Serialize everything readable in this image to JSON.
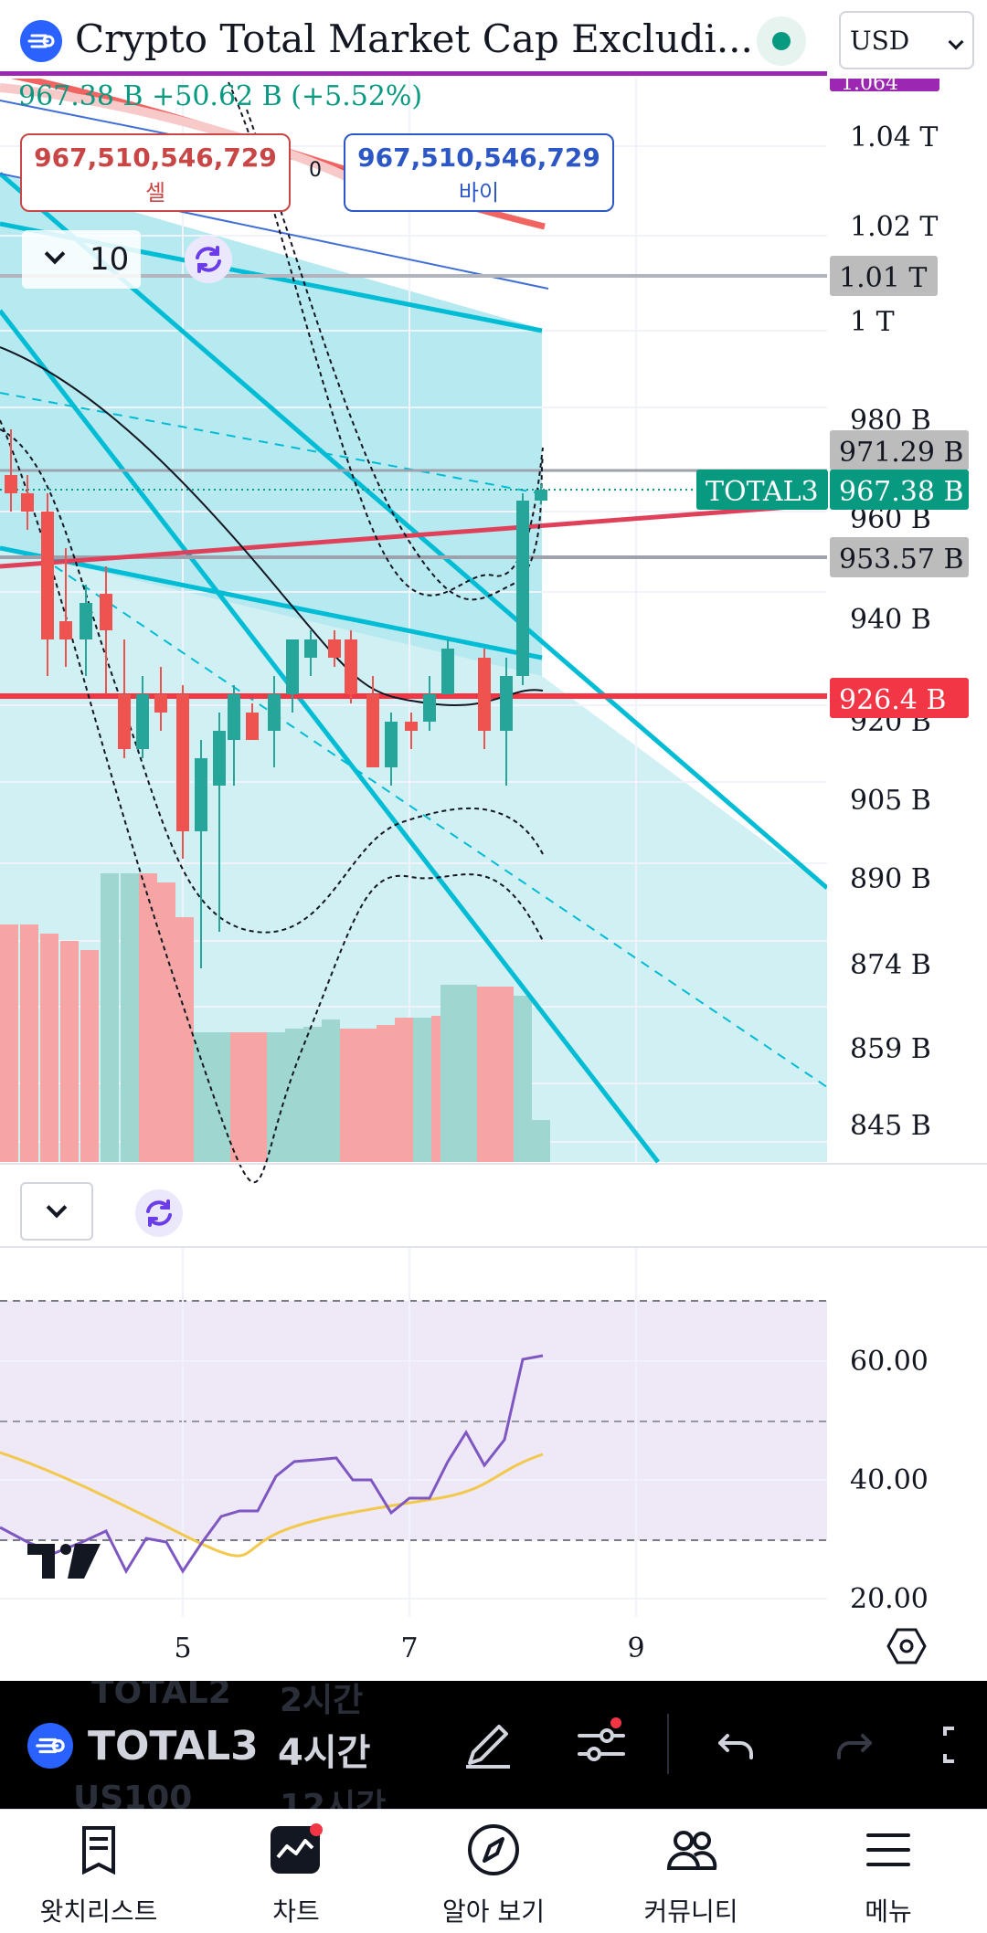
{
  "header": {
    "title": "Crypto Total Market Cap Excludi...",
    "currency": "USD"
  },
  "quote": {
    "price": "967.38 B",
    "change": "+50.62 B",
    "change_pct": "(+5.52%)"
  },
  "order": {
    "sell_value": "967,510,546,729",
    "sell_label": "셀",
    "buy_value": "967,510,546,729",
    "buy_label": "바이",
    "spread": "0"
  },
  "indicator_collapse": {
    "count": "10"
  },
  "price_axis": {
    "ticks": [
      "1.04 T",
      "1.02 T",
      "1 T",
      "980 B",
      "960 B",
      "940 B",
      "920 B",
      "905 B",
      "890 B",
      "874 B",
      "859 B",
      "845 B"
    ],
    "labels": [
      {
        "text": "1.01 T",
        "kind": "gray"
      },
      {
        "text": "971.29 B",
        "kind": "gray"
      },
      {
        "text": "967.38 B",
        "kind": "green"
      },
      {
        "text": "953.57 B",
        "kind": "gray"
      },
      {
        "text": "926.4 B",
        "kind": "red"
      }
    ],
    "symbol_tag": "TOTAL3",
    "partial_top_label": "1.064"
  },
  "rsi_axis": {
    "ticks": [
      "60.00",
      "40.00",
      "20.00"
    ]
  },
  "time_axis": {
    "ticks": [
      "5",
      "7",
      "9"
    ]
  },
  "toolbar": {
    "symbol": "TOTAL3",
    "interval": "4시간",
    "ghost_symbol_above": "TOTAL2",
    "ghost_symbol_below": "US100",
    "ghost_interval_above": "2시간",
    "ghost_interval_below": "12시간"
  },
  "nav": {
    "items": [
      {
        "label": "왓치리스트",
        "icon": "watchlist-icon"
      },
      {
        "label": "차트",
        "icon": "chart-icon"
      },
      {
        "label": "알아 보기",
        "icon": "compass-icon"
      },
      {
        "label": "커뮤니티",
        "icon": "community-icon"
      },
      {
        "label": "메뉴",
        "icon": "menu-icon"
      }
    ]
  },
  "colors": {
    "up": "#26a69a",
    "down": "#ef5350",
    "channel": "#00bcd4",
    "accent": "#2962ff"
  }
}
